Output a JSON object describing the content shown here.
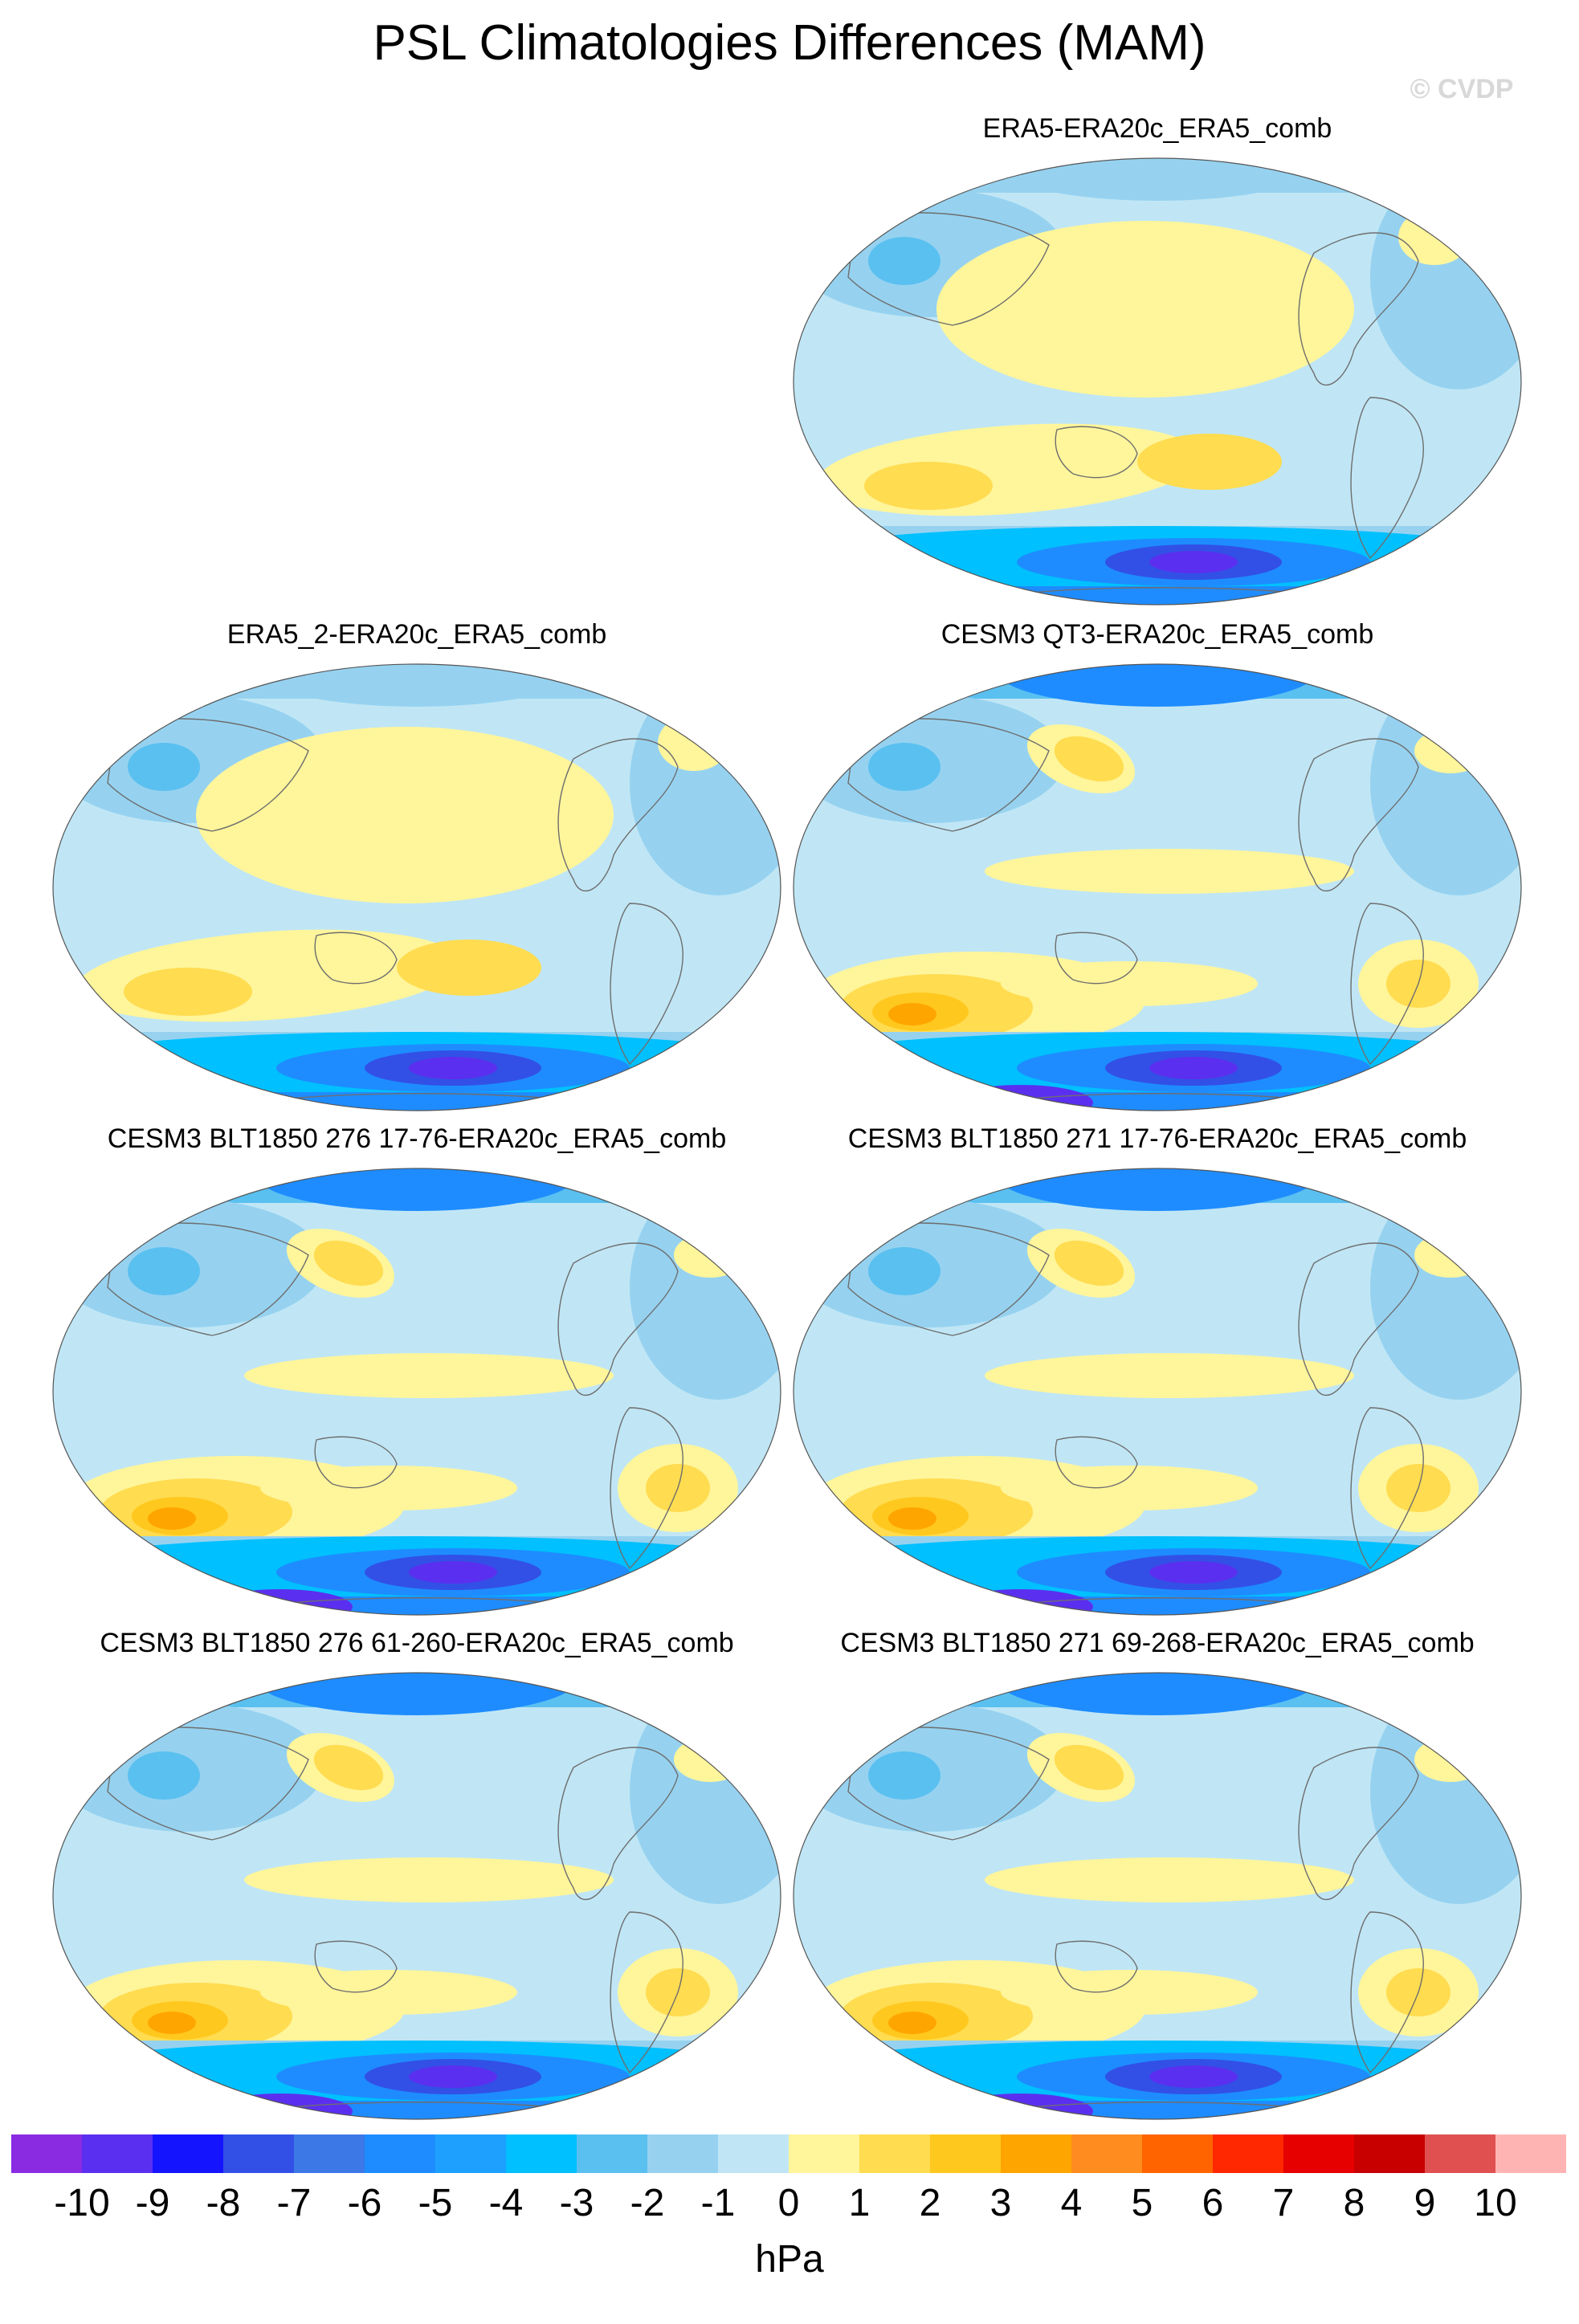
{
  "title": "PSL Climatologies Differences (MAM)",
  "watermark": "© CVDP",
  "panels": [
    {
      "title": "ERA5-ERA20c_ERA5_comb",
      "variant": "reanalysis"
    },
    {
      "title": "ERA5_2-ERA20c_ERA5_comb",
      "variant": "reanalysis"
    },
    {
      "title": "CESM3 QT3-ERA20c_ERA5_comb",
      "variant": "model"
    },
    {
      "title": "CESM3 BLT1850 276 17-76-ERA20c_ERA5_comb",
      "variant": "model"
    },
    {
      "title": "CESM3 BLT1850 271 17-76-ERA20c_ERA5_comb",
      "variant": "model"
    },
    {
      "title": "CESM3 BLT1850 276 61-260-ERA20c_ERA5_comb",
      "variant": "model"
    },
    {
      "title": "CESM3 BLT1850 271 69-268-ERA20c_ERA5_comb",
      "variant": "model"
    }
  ],
  "colorbar": {
    "units": "hPa",
    "labels": [
      "-10",
      "-9",
      "-8",
      "-7",
      "-6",
      "-5",
      "-4",
      "-3",
      "-2",
      "-1",
      "0",
      "1",
      "2",
      "3",
      "4",
      "5",
      "6",
      "7",
      "8",
      "9",
      "10"
    ],
    "colors": [
      "#8a2be2",
      "#5b2ff0",
      "#1414ff",
      "#3250e6",
      "#3c78e6",
      "#1e8cff",
      "#1ea0ff",
      "#00c0ff",
      "#5ac0f0",
      "#96d2f0",
      "#c0e6f5",
      "#fff59b",
      "#ffdc50",
      "#ffc81e",
      "#ffa500",
      "#ff8c1e",
      "#ff6400",
      "#ff2800",
      "#e60000",
      "#c80000",
      "#e15050",
      "#ffb4b4"
    ]
  }
}
